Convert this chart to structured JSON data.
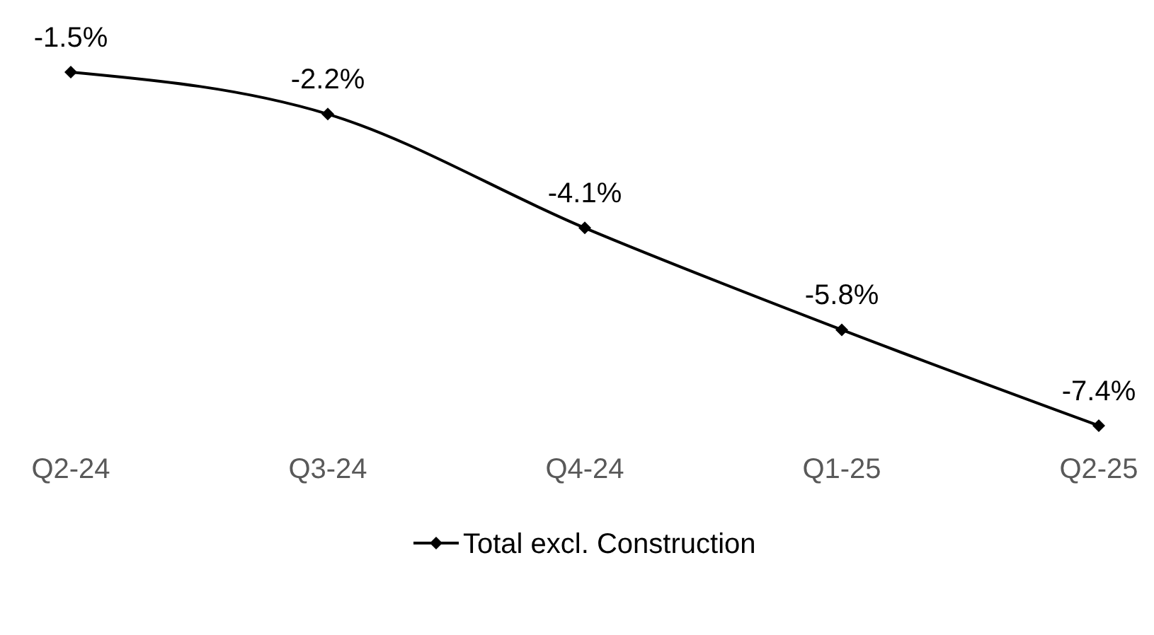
{
  "chart_data": {
    "type": "line",
    "categories": [
      "Q2-24",
      "Q3-24",
      "Q4-24",
      "Q1-25",
      "Q2-25"
    ],
    "series": [
      {
        "name": "Total excl. Construction",
        "color": "#000000",
        "values": [
          -1.5,
          -2.2,
          -4.1,
          -5.8,
          -7.4
        ],
        "value_labels": [
          "-1.5%",
          "-2.2%",
          "-4.1%",
          "-5.8%",
          "-7.4%"
        ]
      }
    ],
    "marker": "diamond",
    "line_style": "solid",
    "legend": "bottom"
  }
}
